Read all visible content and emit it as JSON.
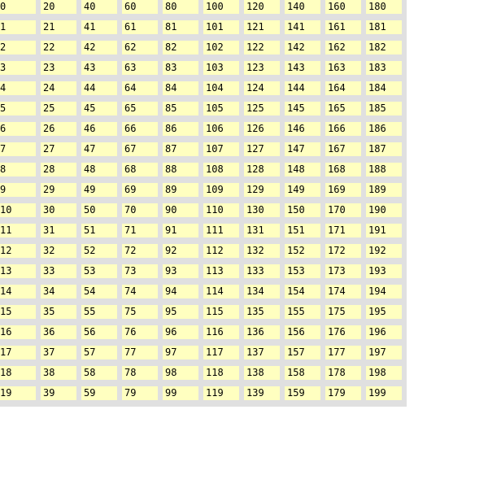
{
  "colors": {
    "grid_background": "#e0e0e0",
    "cell_background": "#ffffc0",
    "text": "#000000"
  },
  "grid": {
    "columns": 10,
    "rows": 20,
    "cells": [
      "0",
      "1",
      "2",
      "3",
      "4",
      "5",
      "6",
      "7",
      "8",
      "9",
      "10",
      "11",
      "12",
      "13",
      "14",
      "15",
      "16",
      "17",
      "18",
      "19",
      "20",
      "21",
      "22",
      "23",
      "24",
      "25",
      "26",
      "27",
      "28",
      "29",
      "30",
      "31",
      "32",
      "33",
      "34",
      "35",
      "36",
      "37",
      "38",
      "39",
      "40",
      "41",
      "42",
      "43",
      "44",
      "45",
      "46",
      "47",
      "48",
      "49",
      "50",
      "51",
      "52",
      "53",
      "54",
      "55",
      "56",
      "57",
      "58",
      "59",
      "60",
      "61",
      "62",
      "63",
      "64",
      "65",
      "66",
      "67",
      "68",
      "69",
      "70",
      "71",
      "72",
      "73",
      "74",
      "75",
      "76",
      "77",
      "78",
      "79",
      "80",
      "81",
      "82",
      "83",
      "84",
      "85",
      "86",
      "87",
      "88",
      "89",
      "90",
      "91",
      "92",
      "93",
      "94",
      "95",
      "96",
      "97",
      "98",
      "99",
      "100",
      "101",
      "102",
      "103",
      "104",
      "105",
      "106",
      "107",
      "108",
      "109",
      "110",
      "111",
      "112",
      "113",
      "114",
      "115",
      "116",
      "117",
      "118",
      "119",
      "120",
      "121",
      "122",
      "123",
      "124",
      "125",
      "126",
      "127",
      "128",
      "129",
      "130",
      "131",
      "132",
      "133",
      "134",
      "135",
      "136",
      "137",
      "138",
      "139",
      "140",
      "141",
      "142",
      "143",
      "144",
      "145",
      "146",
      "147",
      "148",
      "149",
      "150",
      "151",
      "152",
      "153",
      "154",
      "155",
      "156",
      "157",
      "158",
      "159",
      "160",
      "161",
      "162",
      "163",
      "164",
      "165",
      "166",
      "167",
      "168",
      "169",
      "170",
      "171",
      "172",
      "173",
      "174",
      "175",
      "176",
      "177",
      "178",
      "179",
      "180",
      "181",
      "182",
      "183",
      "184",
      "185",
      "186",
      "187",
      "188",
      "189",
      "190",
      "191",
      "192",
      "193",
      "194",
      "195",
      "196",
      "197",
      "198",
      "199"
    ]
  }
}
